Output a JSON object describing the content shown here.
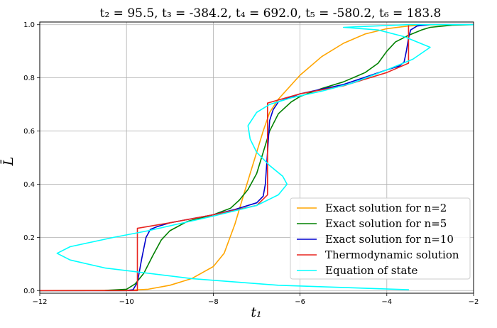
{
  "chart_data": {
    "type": "line",
    "title": "t₂ = 95.5,  t₃ = -384.2,  t₄ = 692.0,  t₅ = -580.2,  t₆ = 183.8",
    "xlabel": "t₁",
    "ylabel": "L̄",
    "xlim": [
      -12,
      -2
    ],
    "ylim": [
      -0.01,
      1.01
    ],
    "x_ticks": [
      -12,
      -10,
      -8,
      -6,
      -4,
      -2
    ],
    "x_tick_labels": [
      "−12",
      "−10",
      "−8",
      "−6",
      "−4",
      "−2"
    ],
    "y_ticks": [
      0.0,
      0.2,
      0.4,
      0.6,
      0.8,
      1.0
    ],
    "y_tick_labels": [
      "0.0",
      "0.2",
      "0.4",
      "0.6",
      "0.8",
      "1.0"
    ],
    "grid": true,
    "legend_position": "bottom-right",
    "series": [
      {
        "name": "Exact solution for n=2",
        "color": "#ffa500",
        "points": [
          [
            -12,
            0.0
          ],
          [
            -10.5,
            0.0005
          ],
          [
            -10,
            0.001
          ],
          [
            -9.5,
            0.005
          ],
          [
            -9.0,
            0.02
          ],
          [
            -8.5,
            0.045
          ],
          [
            -8.0,
            0.09
          ],
          [
            -7.75,
            0.14
          ],
          [
            -7.5,
            0.25
          ],
          [
            -7.3,
            0.36
          ],
          [
            -7.15,
            0.44
          ],
          [
            -7.0,
            0.52
          ],
          [
            -6.85,
            0.6
          ],
          [
            -6.7,
            0.67
          ],
          [
            -6.5,
            0.72
          ],
          [
            -6.0,
            0.81
          ],
          [
            -5.5,
            0.88
          ],
          [
            -5.0,
            0.93
          ],
          [
            -4.5,
            0.965
          ],
          [
            -4.0,
            0.985
          ],
          [
            -3.5,
            0.995
          ],
          [
            -3.0,
            0.999
          ],
          [
            -2.0,
            1.0
          ]
        ]
      },
      {
        "name": "Exact solution for n=5",
        "color": "#008000",
        "points": [
          [
            -12,
            0.0
          ],
          [
            -10.5,
            0.0003
          ],
          [
            -10.0,
            0.005
          ],
          [
            -9.8,
            0.025
          ],
          [
            -9.6,
            0.065
          ],
          [
            -9.4,
            0.13
          ],
          [
            -9.2,
            0.19
          ],
          [
            -9.0,
            0.225
          ],
          [
            -8.6,
            0.26
          ],
          [
            -8.0,
            0.285
          ],
          [
            -7.6,
            0.31
          ],
          [
            -7.4,
            0.34
          ],
          [
            -7.2,
            0.38
          ],
          [
            -7.0,
            0.44
          ],
          [
            -6.85,
            0.52
          ],
          [
            -6.7,
            0.6
          ],
          [
            -6.5,
            0.665
          ],
          [
            -6.2,
            0.71
          ],
          [
            -6.0,
            0.73
          ],
          [
            -5.5,
            0.76
          ],
          [
            -5.0,
            0.785
          ],
          [
            -4.5,
            0.82
          ],
          [
            -4.2,
            0.855
          ],
          [
            -4.0,
            0.9
          ],
          [
            -3.8,
            0.935
          ],
          [
            -3.5,
            0.96
          ],
          [
            -3.2,
            0.98
          ],
          [
            -3.0,
            0.99
          ],
          [
            -2.5,
            0.998
          ],
          [
            -2.0,
            1.0
          ]
        ]
      },
      {
        "name": "Exact solution for n=10",
        "color": "#0000cd",
        "points": [
          [
            -12,
            0.0
          ],
          [
            -10.0,
            0.0
          ],
          [
            -9.85,
            0.003
          ],
          [
            -9.75,
            0.03
          ],
          [
            -9.65,
            0.12
          ],
          [
            -9.55,
            0.2
          ],
          [
            -9.45,
            0.23
          ],
          [
            -9.3,
            0.24
          ],
          [
            -9.0,
            0.255
          ],
          [
            -8.0,
            0.285
          ],
          [
            -7.5,
            0.305
          ],
          [
            -7.0,
            0.33
          ],
          [
            -6.85,
            0.355
          ],
          [
            -6.8,
            0.4
          ],
          [
            -6.75,
            0.52
          ],
          [
            -6.7,
            0.64
          ],
          [
            -6.62,
            0.68
          ],
          [
            -6.5,
            0.71
          ],
          [
            -6.0,
            0.74
          ],
          [
            -5.0,
            0.775
          ],
          [
            -4.0,
            0.83
          ],
          [
            -3.7,
            0.845
          ],
          [
            -3.6,
            0.86
          ],
          [
            -3.55,
            0.9
          ],
          [
            -3.5,
            0.95
          ],
          [
            -3.45,
            0.98
          ],
          [
            -3.3,
            0.995
          ],
          [
            -3.0,
            1.0
          ],
          [
            -2.0,
            1.0
          ]
        ]
      },
      {
        "name": "Thermodynamic solution",
        "color": "#e8251f",
        "points": [
          [
            -12,
            0.0
          ],
          [
            -9.75,
            0.0
          ],
          [
            -9.75,
            0.234
          ],
          [
            -9.0,
            0.255
          ],
          [
            -8.0,
            0.285
          ],
          [
            -7.0,
            0.32
          ],
          [
            -6.75,
            0.36
          ],
          [
            -6.75,
            0.705
          ],
          [
            -6.0,
            0.74
          ],
          [
            -5.0,
            0.77
          ],
          [
            -4.0,
            0.82
          ],
          [
            -3.5,
            0.855
          ],
          [
            -3.5,
            1.0
          ],
          [
            -2.0,
            1.0
          ]
        ]
      },
      {
        "name": "Equation of state",
        "color": "#00ffff",
        "points": [
          [
            -3.5,
            0.003
          ],
          [
            -6.5,
            0.02
          ],
          [
            -8.5,
            0.045
          ],
          [
            -10.5,
            0.085
          ],
          [
            -11.3,
            0.115
          ],
          [
            -11.6,
            0.14
          ],
          [
            -11.3,
            0.165
          ],
          [
            -10.3,
            0.2
          ],
          [
            -9.5,
            0.225
          ],
          [
            -8.0,
            0.28
          ],
          [
            -7.0,
            0.32
          ],
          [
            -6.5,
            0.36
          ],
          [
            -6.3,
            0.4
          ],
          [
            -6.4,
            0.43
          ],
          [
            -6.7,
            0.47
          ],
          [
            -7.0,
            0.52
          ],
          [
            -7.15,
            0.57
          ],
          [
            -7.2,
            0.62
          ],
          [
            -7.0,
            0.67
          ],
          [
            -6.7,
            0.7
          ],
          [
            -6.2,
            0.725
          ],
          [
            -5.5,
            0.75
          ],
          [
            -4.8,
            0.78
          ],
          [
            -4.0,
            0.83
          ],
          [
            -3.4,
            0.87
          ],
          [
            -3.0,
            0.915
          ],
          [
            -3.6,
            0.955
          ],
          [
            -4.2,
            0.98
          ],
          [
            -5.0,
            0.99
          ],
          [
            -3.5,
            1.0
          ],
          [
            -2.0,
            1.0
          ]
        ]
      }
    ]
  }
}
